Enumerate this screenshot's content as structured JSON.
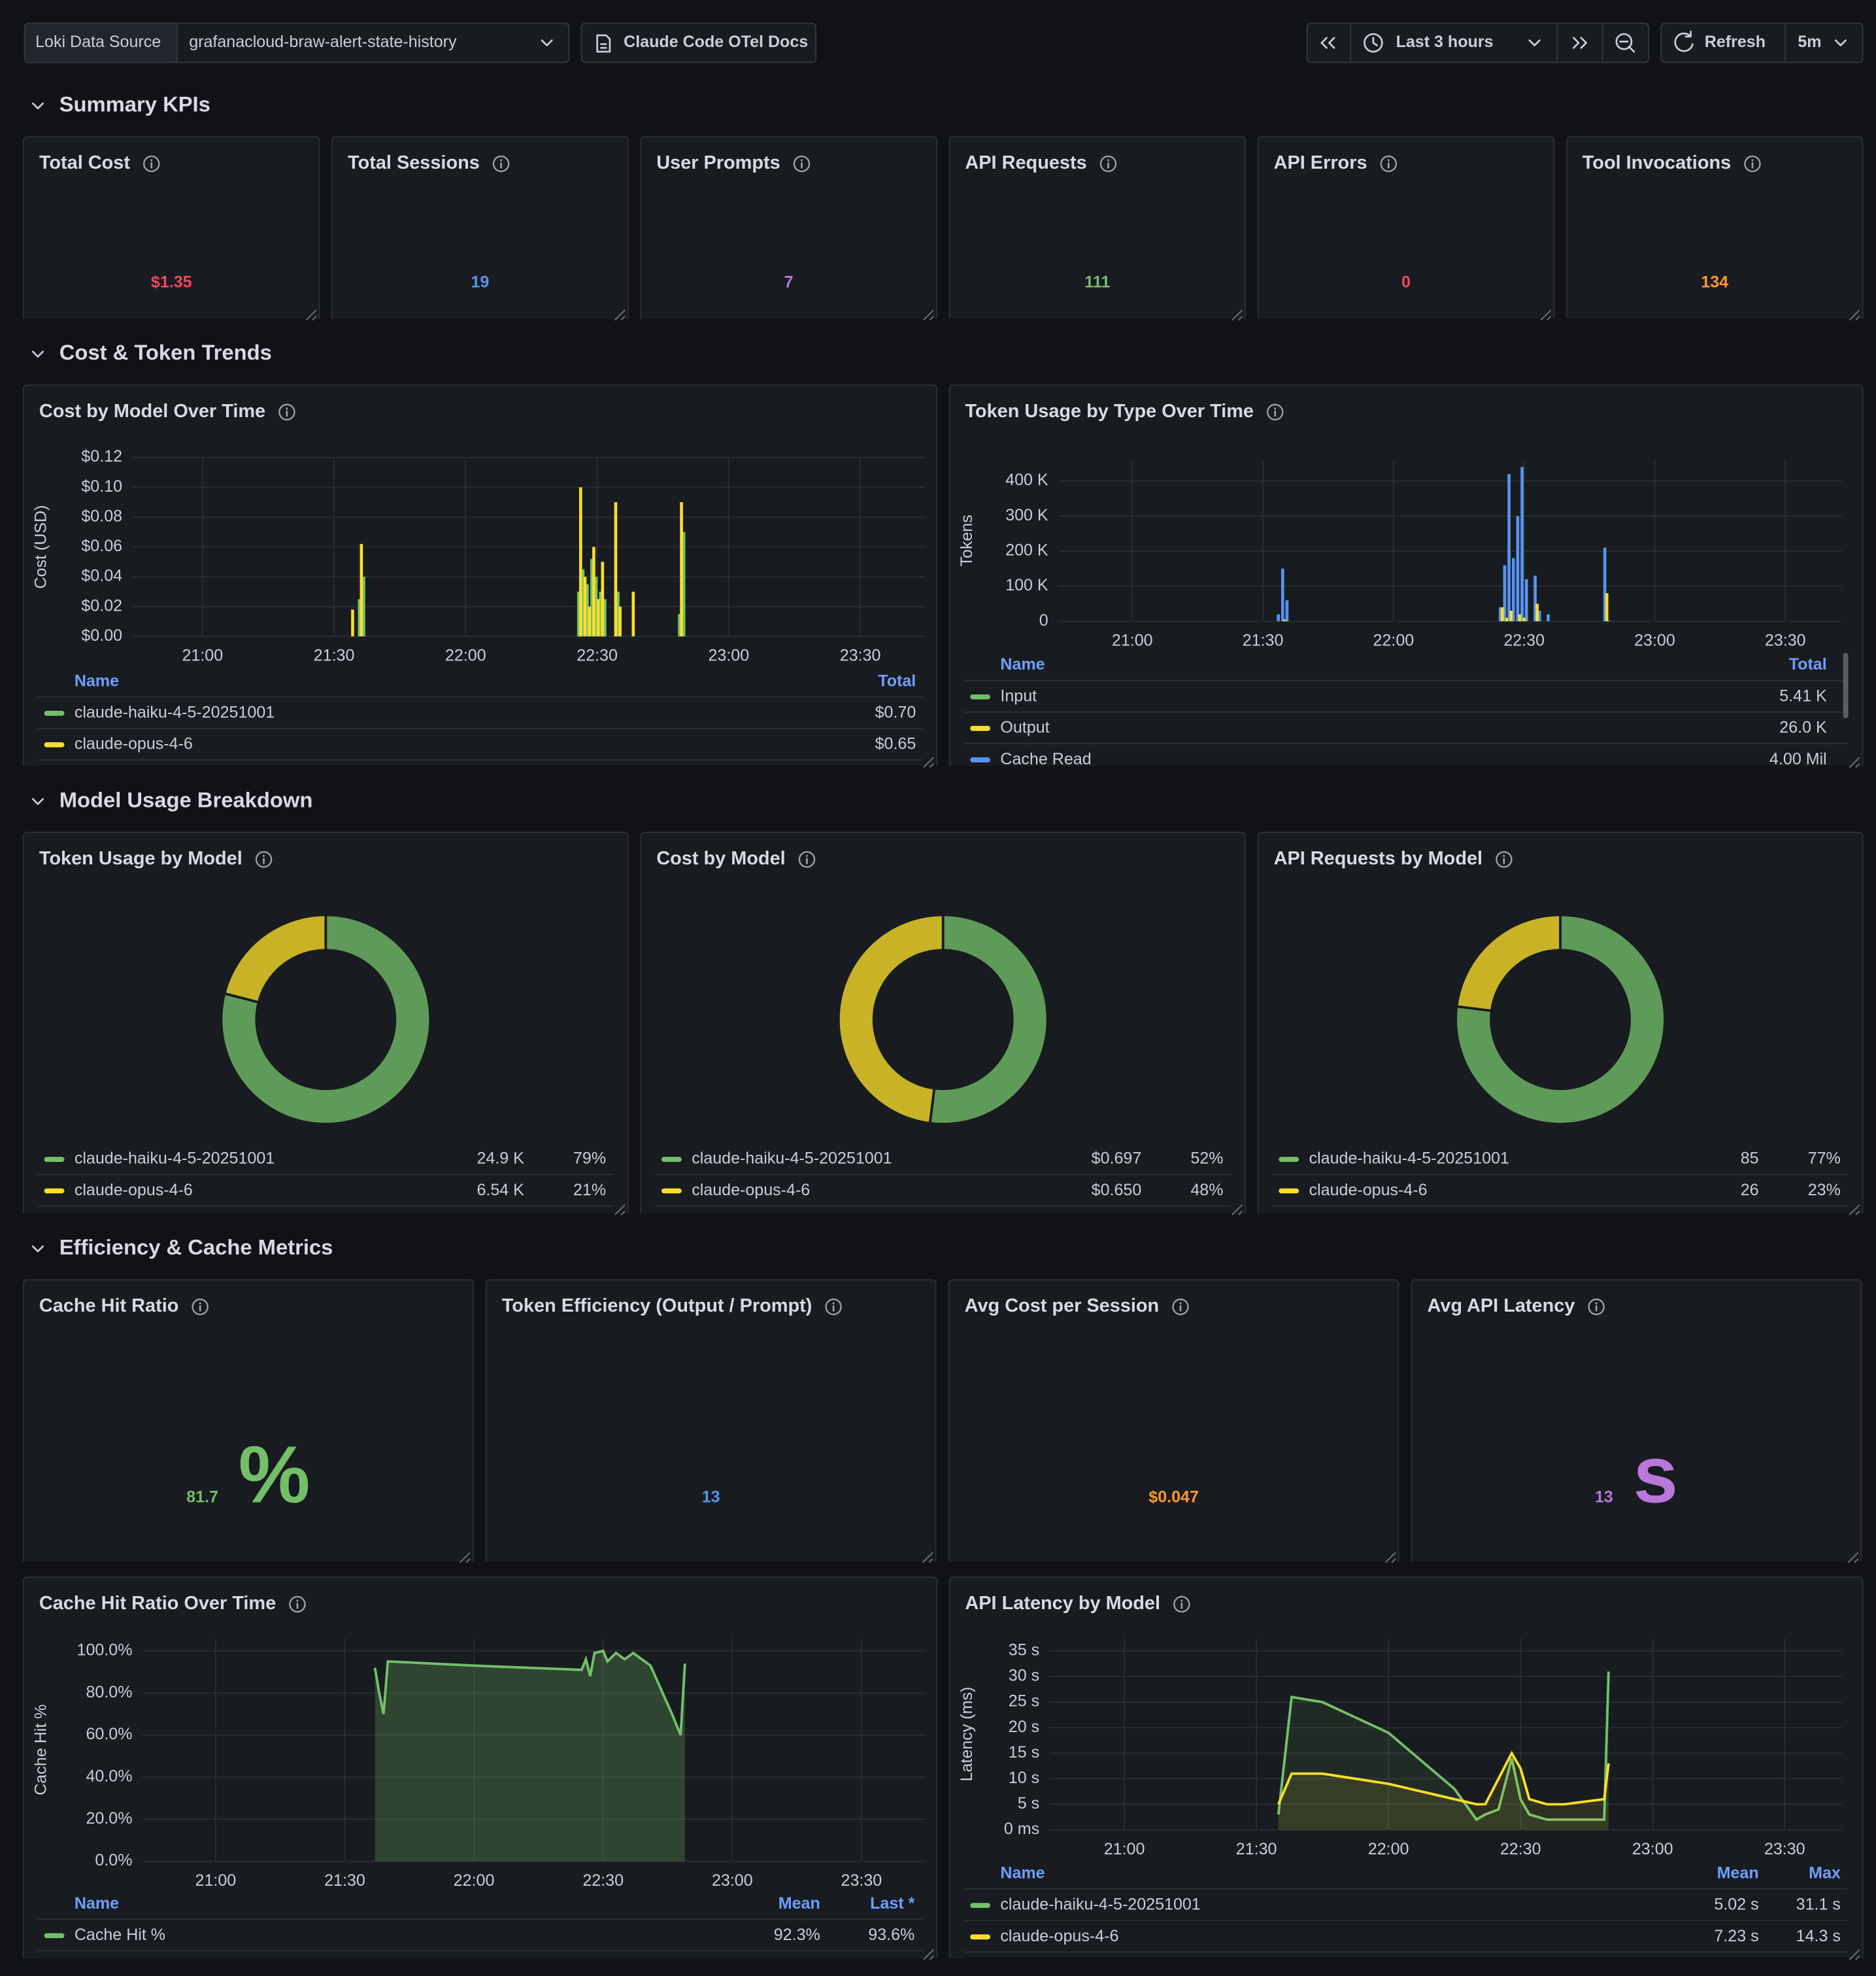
{
  "toolbar": {
    "datasource_label": "Loki Data Source",
    "datasource": "grafanacloud-braw-alert-state-history",
    "docs_link": "Claude Code OTel Docs",
    "time_range": "Last 3 hours",
    "refresh": "Refresh",
    "interval": "5m"
  },
  "sections": [
    "Summary KPIs",
    "Cost & Token Trends",
    "Model Usage Breakdown",
    "Efficiency & Cache Metrics"
  ],
  "kpis": [
    {
      "title": "Total Cost",
      "value": "$1.35",
      "color": "#f2495c"
    },
    {
      "title": "Total Sessions",
      "value": "19",
      "color": "#5794f2"
    },
    {
      "title": "User Prompts",
      "value": "7",
      "color": "#b877d9"
    },
    {
      "title": "API Requests",
      "value": "111",
      "color": "#73bf69"
    },
    {
      "title": "API Errors",
      "value": "0",
      "color": "#f2495c"
    },
    {
      "title": "Tool Invocations",
      "value": "134",
      "color": "#ff9830"
    }
  ],
  "trends": [
    {
      "type": "bar",
      "title": "Cost by Model Over Time",
      "y_label": "Cost (USD)",
      "x": [
        "21:34",
        "21:36",
        "21:37",
        "22:26",
        "22:27",
        "22:28",
        "22:29",
        "22:30",
        "22:31",
        "22:32",
        "22:34",
        "22:35",
        "22:38",
        "22:49",
        "22:50"
      ],
      "xlim": [
        "20:44",
        "23:45"
      ],
      "xticks": [
        "21:00",
        "21:30",
        "22:00",
        "22:30",
        "23:00",
        "23:30"
      ],
      "ylim": [
        0,
        0.12
      ],
      "yticks": [
        {
          "value": 0,
          "label": "$0.00"
        },
        {
          "value": 0.02,
          "label": "$0.02"
        },
        {
          "value": 0.04,
          "label": "$0.04"
        },
        {
          "value": 0.06,
          "label": "$0.06"
        },
        {
          "value": 0.08,
          "label": "$0.08"
        },
        {
          "value": 0.1,
          "label": "$0.10"
        },
        {
          "value": 0.12,
          "label": "$0.12"
        }
      ],
      "legend_headers": [
        "Name",
        "Total"
      ],
      "series": [
        {
          "name": "claude-haiku-4-5-20251001",
          "color": "#73bf69",
          "stats": [
            "$0.70"
          ],
          "values": [
            null,
            0.025,
            0.04,
            0.03,
            0.045,
            0.035,
            0.052,
            0.04,
            0.03,
            0.025,
            null,
            0.03,
            null,
            0.015,
            0.07
          ]
        },
        {
          "name": "claude-opus-4-6",
          "color": "#fade2a",
          "stats": [
            "$0.65"
          ],
          "values": [
            0.018,
            0.062,
            null,
            0.1,
            0.04,
            0.02,
            0.06,
            0.025,
            0.05,
            null,
            0.09,
            0.02,
            0.03,
            0.09,
            null
          ]
        }
      ]
    },
    {
      "type": "bar",
      "title": "Token Usage by Type Over Time",
      "y_label": "Tokens",
      "x": [
        "21:34",
        "21:35",
        "21:36",
        "22:25",
        "22:26",
        "22:27",
        "22:28",
        "22:29",
        "22:30",
        "22:31",
        "22:33",
        "22:34",
        "22:36",
        "22:49"
      ],
      "xlim": [
        "20:43",
        "23:43"
      ],
      "xticks": [
        "21:00",
        "21:30",
        "22:00",
        "22:30",
        "23:00",
        "23:30"
      ],
      "ylim": [
        0,
        460000
      ],
      "yticks": [
        0,
        {
          "value": 100000,
          "label": "100 K"
        },
        {
          "value": 200000,
          "label": "200 K"
        },
        {
          "value": 300000,
          "label": "300 K"
        },
        {
          "value": 400000,
          "label": "400 K"
        }
      ],
      "legend_headers": [
        "Name",
        "Total"
      ],
      "series": [
        {
          "name": "Cache Read",
          "color": "#5794f2",
          "stats": [
            "4.00 Mil"
          ],
          "values": [
            20000,
            150000,
            60000,
            40000,
            160000,
            420000,
            180000,
            300000,
            440000,
            120000,
            130000,
            30000,
            20000,
            210000
          ]
        },
        {
          "name": "Output",
          "color": "#fade2a",
          "stats": [
            "26.0 K"
          ],
          "values": [
            null,
            5000,
            null,
            40000,
            10000,
            30000,
            null,
            20000,
            10000,
            null,
            50000,
            null,
            null,
            80000
          ]
        },
        {
          "name": "Input",
          "color": "#73bf69",
          "stats": [
            "5.41 K"
          ],
          "values": [
            null,
            2000,
            null,
            3000,
            1000,
            2000,
            null,
            1000,
            2000,
            null,
            3000,
            null,
            null,
            2000
          ]
        }
      ]
    }
  ],
  "breakdown": [
    {
      "type": "pie",
      "title": "Token Usage by Model",
      "categories": [
        "claude-haiku-4-5-20251001",
        "claude-opus-4-6"
      ],
      "colors": [
        "#73bf69",
        "#fade2a"
      ],
      "values": [
        79,
        21
      ],
      "value_labels": [
        "79%",
        "21%"
      ],
      "amounts": [
        "24.9 K",
        "6.54 K"
      ]
    },
    {
      "type": "pie",
      "title": "Cost by Model",
      "categories": [
        "claude-haiku-4-5-20251001",
        "claude-opus-4-6"
      ],
      "colors": [
        "#73bf69",
        "#fade2a"
      ],
      "values": [
        52,
        48
      ],
      "value_labels": [
        "52%",
        "48%"
      ],
      "amounts": [
        "$0.697",
        "$0.650"
      ]
    },
    {
      "type": "pie",
      "title": "API Requests by Model",
      "categories": [
        "claude-haiku-4-5-20251001",
        "claude-opus-4-6"
      ],
      "colors": [
        "#73bf69",
        "#fade2a"
      ],
      "values": [
        77,
        23
      ],
      "value_labels": [
        "77%",
        "23%"
      ],
      "amounts": [
        "85",
        "26"
      ]
    }
  ],
  "efficiency": [
    {
      "title": "Cache Hit Ratio",
      "value": "81.7",
      "unit": "%",
      "color": "#73bf69"
    },
    {
      "title": "Token Efficiency (Output / Prompt)",
      "value": "13",
      "color": "#5794f2"
    },
    {
      "title": "Avg Cost per Session",
      "value": "$0.047",
      "color": "#ff9830"
    },
    {
      "title": "Avg API Latency",
      "value": "13",
      "unit": "s",
      "color": "#b877d9"
    }
  ],
  "efficiency_charts": [
    {
      "type": "line",
      "title": "Cache Hit Ratio Over Time",
      "y_label": "Cache Hit %",
      "fill_opacity": 0.25,
      "x": [
        "21:37",
        "21:38",
        "21:39",
        "21:40",
        "22:00",
        "22:25",
        "22:26",
        "22:27",
        "22:28",
        "22:30",
        "22:31",
        "22:33",
        "22:35",
        "22:37",
        "22:41",
        "22:46",
        "22:48",
        "22:49"
      ],
      "xlim": [
        "20:43",
        "23:45"
      ],
      "xticks": [
        "21:00",
        "21:30",
        "22:00",
        "22:30",
        "23:00",
        "23:30"
      ],
      "ylim": [
        0,
        106
      ],
      "yticks": [
        {
          "value": 0,
          "label": "0.0%"
        },
        {
          "value": 20,
          "label": "20.0%"
        },
        {
          "value": 40,
          "label": "40.0%"
        },
        {
          "value": 60,
          "label": "60.0%"
        },
        {
          "value": 80,
          "label": "80.0%"
        },
        {
          "value": 100,
          "label": "100.0%"
        }
      ],
      "legend_headers": [
        "Name",
        "Mean",
        "Last *"
      ],
      "series": [
        {
          "name": "Cache Hit %",
          "color": "#73bf69",
          "stats": [
            "92.3%",
            "93.6%"
          ],
          "values": [
            92,
            80,
            70,
            95,
            93,
            91,
            96,
            88,
            99,
            100,
            95,
            99,
            96,
            99,
            93,
            70,
            60,
            94
          ]
        }
      ]
    },
    {
      "type": "line",
      "title": "API Latency by Model",
      "y_label": "Latency (ms)",
      "fill_opacity": 0.1,
      "x": [
        "21:35",
        "21:38",
        "21:45",
        "22:00",
        "22:15",
        "22:20",
        "22:22",
        "22:25",
        "22:28",
        "22:30",
        "22:32",
        "22:36",
        "22:40",
        "22:49",
        "22:50"
      ],
      "xlim": [
        "20:43",
        "23:43"
      ],
      "xticks": [
        "21:00",
        "21:30",
        "22:00",
        "22:30",
        "23:00",
        "23:30"
      ],
      "ylim": [
        0,
        37.5
      ],
      "yticks": [
        {
          "value": 0,
          "label": "0 ms"
        },
        {
          "value": 5,
          "label": "5 s"
        },
        {
          "value": 10,
          "label": "10 s"
        },
        {
          "value": 15,
          "label": "15 s"
        },
        {
          "value": 20,
          "label": "20 s"
        },
        {
          "value": 25,
          "label": "25 s"
        },
        {
          "value": 30,
          "label": "30 s"
        },
        {
          "value": 35,
          "label": "35 s"
        }
      ],
      "legend_headers": [
        "Name",
        "Mean",
        "Max"
      ],
      "series": [
        {
          "name": "claude-haiku-4-5-20251001",
          "color": "#73bf69",
          "stats": [
            "5.02 s",
            "31.1 s"
          ],
          "values": [
            3,
            26,
            25,
            19,
            8,
            2,
            3,
            4,
            14,
            6,
            3,
            2,
            2,
            2,
            31
          ]
        },
        {
          "name": "claude-opus-4-6",
          "color": "#fade2a",
          "stats": [
            "7.23 s",
            "14.3 s"
          ],
          "values": [
            5,
            11,
            11,
            9,
            6,
            5,
            5,
            10,
            15,
            12,
            6,
            5,
            5,
            6,
            13
          ]
        }
      ]
    }
  ]
}
